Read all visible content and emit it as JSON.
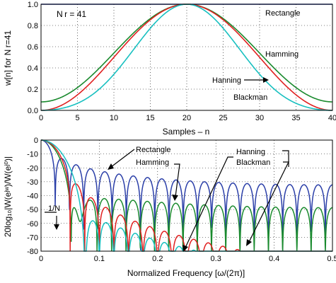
{
  "chart_data": [
    {
      "type": "line",
      "annotation": "N r = 41",
      "xlabel": "Samples – n",
      "ylabel": "w[n] for N r=41",
      "xlim": [
        0,
        40
      ],
      "ylim": [
        0,
        1
      ],
      "xticks": [
        0,
        5,
        10,
        15,
        20,
        25,
        30,
        35,
        40
      ],
      "yticks": [
        0.0,
        0.2,
        0.4,
        0.6,
        0.8,
        1.0
      ],
      "ytick_labels": [
        "0.0",
        "0.2",
        "0.4",
        "0.6",
        "0.8",
        "1.0"
      ],
      "grid": true,
      "series": [
        {
          "name": "Rectangle",
          "color": "#2b3fa8",
          "formula": "1"
        },
        {
          "name": "Hamming",
          "color": "#1a8a2e",
          "formula": "0.54-0.46cos(2πn/40)"
        },
        {
          "name": "Hanning",
          "color": "#e02020",
          "formula": "0.5-0.5cos(2πn/40)"
        },
        {
          "name": "Blackman",
          "color": "#18c0c0",
          "formula": "0.42-0.5cos(2πn/40)+0.08cos(4πn/40)"
        }
      ]
    },
    {
      "type": "line",
      "xlabel": "Normalized Frequency [ω/(2π)]",
      "ylabel": "20log₁₀|W(eʲʷ)/W(eʲ⁰)|",
      "xlim": [
        0,
        0.5
      ],
      "ylim": [
        -80,
        0
      ],
      "xticks": [
        0,
        0.1,
        0.2,
        0.3,
        0.4,
        0.5
      ],
      "yticks": [
        0,
        -10,
        -20,
        -30,
        -40,
        -50,
        -60,
        -70,
        -80
      ],
      "annotation": "1/N",
      "annotation_x": 0.0244,
      "grid": true,
      "series": [
        {
          "name": "Rectangle",
          "color": "#2b3fa8"
        },
        {
          "name": "Hamming",
          "color": "#1a8a2e"
        },
        {
          "name": "Hanning",
          "color": "#e02020"
        },
        {
          "name": "Blackman",
          "color": "#18c0c0"
        }
      ],
      "callouts": [
        "Rectangle",
        "Hamming",
        "Hanning",
        "Blackman"
      ]
    }
  ]
}
